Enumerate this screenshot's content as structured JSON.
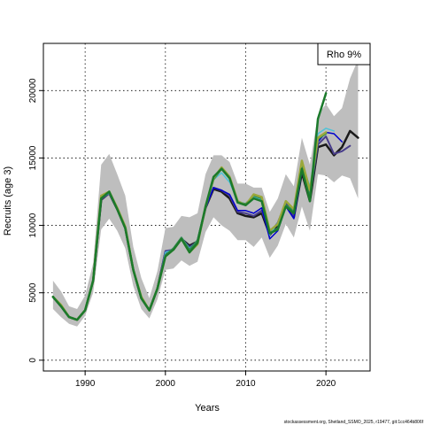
{
  "chart_data": {
    "type": "line",
    "xlabel": "Years",
    "ylabel": "Recruits (age 3)",
    "xlim": [
      1984.8,
      2025.5
    ],
    "ylim": [
      -800,
      23500
    ],
    "x_ticks": [
      1990,
      2000,
      2010,
      2020
    ],
    "y_ticks": [
      0,
      5000,
      10000,
      15000,
      20000
    ],
    "grid": true,
    "legend_position": "top-right",
    "legend_label": "Rho 9%",
    "footer": "stockassessment.org, Shetland_SSMO_2025, r19477, git:1cc464b806f",
    "confidence_band": {
      "color": "#bebebe",
      "x": [
        1986,
        1987,
        1988,
        1989,
        1990,
        1991,
        1992,
        1993,
        1994,
        1995,
        1996,
        1997,
        1998,
        1999,
        2000,
        2001,
        2002,
        2003,
        2004,
        2005,
        2006,
        2007,
        2008,
        2009,
        2010,
        2011,
        2012,
        2013,
        2014,
        2015,
        2016,
        2017,
        2018,
        2019,
        2020,
        2021,
        2022,
        2023,
        2024
      ],
      "upper": [
        5900,
        5100,
        4000,
        3800,
        4800,
        7200,
        14500,
        15300,
        13800,
        12200,
        8400,
        6100,
        4600,
        6600,
        9800,
        9900,
        10700,
        10600,
        10900,
        13800,
        15200,
        15200,
        14700,
        13100,
        13100,
        12800,
        12800,
        11000,
        12000,
        13800,
        12900,
        16500,
        14500,
        18200,
        19000,
        18100,
        18700,
        20900,
        22300
      ],
      "lower": [
        3800,
        3200,
        2700,
        2500,
        3300,
        5000,
        9700,
        10500,
        9600,
        8300,
        5500,
        3800,
        3100,
        4500,
        6700,
        6800,
        7400,
        7000,
        7300,
        9500,
        10600,
        10000,
        9600,
        8900,
        8900,
        8400,
        9100,
        7600,
        8500,
        10100,
        9100,
        11400,
        9600,
        13800,
        13700,
        13200,
        13700,
        13500,
        12000
      ]
    },
    "series": [
      {
        "color": "#1a1a1a",
        "width": 2.5,
        "x": [
          1986,
          1987,
          1988,
          1989,
          1990,
          1991,
          1992,
          1993,
          1994,
          1995,
          1996,
          1997,
          1998,
          1999,
          2000,
          2001,
          2002,
          2003,
          2004,
          2005,
          2006,
          2007,
          2008,
          2009,
          2010,
          2011,
          2012,
          2013,
          2014,
          2015,
          2016,
          2017,
          2018,
          2019,
          2020,
          2021,
          2022,
          2023,
          2024
        ],
        "values": [
          4700,
          4000,
          3200,
          3000,
          3700,
          5900,
          11900,
          12400,
          11200,
          9800,
          6700,
          4600,
          3700,
          5300,
          8000,
          8200,
          9000,
          8500,
          8800,
          11300,
          12700,
          12500,
          12000,
          10900,
          10700,
          10600,
          10900,
          9300,
          10000,
          11600,
          10600,
          13900,
          11800,
          15800,
          16000,
          15200,
          15800,
          17000,
          16500
        ]
      },
      {
        "color": "#483d8b",
        "width": 2,
        "x": [
          1986,
          1987,
          1988,
          1989,
          1990,
          1991,
          1992,
          1993,
          1994,
          1995,
          1996,
          1997,
          1998,
          1999,
          2000,
          2001,
          2002,
          2003,
          2004,
          2005,
          2006,
          2007,
          2008,
          2009,
          2010,
          2011,
          2012,
          2013,
          2014,
          2015,
          2016,
          2017,
          2018,
          2019,
          2020,
          2021,
          2022,
          2023
        ],
        "values": [
          4700,
          4000,
          3200,
          3000,
          3700,
          5900,
          11900,
          12400,
          11200,
          9800,
          6700,
          4600,
          3700,
          5300,
          8100,
          8200,
          9000,
          8400,
          8800,
          11300,
          12800,
          12600,
          12200,
          11000,
          10900,
          10700,
          11100,
          9400,
          10200,
          11700,
          10700,
          14100,
          12100,
          16000,
          16600,
          15300,
          15500,
          15900
        ]
      },
      {
        "color": "#0000cd",
        "width": 1.5,
        "x": [
          1986,
          1987,
          1988,
          1989,
          1990,
          1991,
          1992,
          1993,
          1994,
          1995,
          1996,
          1997,
          1998,
          1999,
          2000,
          2001,
          2002,
          2003,
          2004,
          2005,
          2006,
          2007,
          2008,
          2009,
          2010,
          2011,
          2012,
          2013,
          2014,
          2015,
          2016,
          2017,
          2018,
          2019,
          2020,
          2021,
          2022
        ],
        "values": [
          4700,
          4000,
          3200,
          3000,
          3700,
          5900,
          12000,
          12400,
          11200,
          9800,
          6700,
          4600,
          3700,
          5300,
          8000,
          8200,
          9100,
          8300,
          8800,
          11300,
          12800,
          12600,
          12300,
          11100,
          11100,
          10900,
          11300,
          9000,
          9600,
          11400,
          10500,
          14000,
          12200,
          16200,
          16900,
          16800,
          16200
        ]
      },
      {
        "color": "#4fc3d8",
        "width": 1.5,
        "x": [
          1986,
          1987,
          1988,
          1989,
          1990,
          1991,
          1992,
          1993,
          1994,
          1995,
          1996,
          1997,
          1998,
          1999,
          2000,
          2001,
          2002,
          2003,
          2004,
          2005,
          2006,
          2007,
          2008,
          2009,
          2010,
          2011,
          2012,
          2013,
          2014,
          2015,
          2016,
          2017,
          2018,
          2019,
          2020,
          2021
        ],
        "values": [
          4700,
          4000,
          3200,
          3000,
          3700,
          5900,
          12000,
          12400,
          11200,
          9900,
          6700,
          4600,
          3700,
          5300,
          8000,
          8200,
          9100,
          8300,
          8800,
          11300,
          13400,
          13900,
          13200,
          11800,
          11600,
          12100,
          11900,
          9300,
          10200,
          11500,
          11000,
          14600,
          12900,
          16800,
          17200,
          17000
        ]
      },
      {
        "color": "#2e8b57",
        "width": 2,
        "x": [
          1986,
          1987,
          1988,
          1989,
          1990,
          1991,
          1992,
          1993,
          1994,
          1995,
          1996,
          1997,
          1998,
          1999,
          2000,
          2001,
          2002,
          2003,
          2004,
          2005,
          2006,
          2007,
          2008,
          2009,
          2010,
          2011,
          2012,
          2013,
          2014,
          2015,
          2016,
          2017,
          2018,
          2019,
          2020
        ],
        "values": [
          4700,
          4000,
          3200,
          3000,
          3700,
          6000,
          12100,
          12500,
          11300,
          9900,
          6700,
          4600,
          3700,
          5300,
          7800,
          8300,
          9100,
          8200,
          8900,
          11400,
          13400,
          14200,
          13500,
          11700,
          11600,
          12200,
          12000,
          9400,
          9800,
          11500,
          11100,
          14500,
          12100,
          16400,
          16800
        ]
      },
      {
        "color": "#9aa83a",
        "width": 2.5,
        "x": [
          1986,
          1987,
          1988,
          1989,
          1990,
          1991,
          1992,
          1993,
          1994,
          1995,
          1996,
          1997,
          1998,
          1999,
          2000,
          2001,
          2002,
          2003,
          2004,
          2005,
          2006,
          2007,
          2008,
          2009,
          2010,
          2011,
          2012,
          2013,
          2014,
          2015,
          2016,
          2017,
          2018,
          2019,
          2020
        ],
        "values": [
          4700,
          4100,
          3200,
          3000,
          3700,
          5900,
          12200,
          12500,
          11300,
          9900,
          6700,
          4700,
          3700,
          5300,
          7700,
          8200,
          9000,
          8000,
          8600,
          11400,
          13500,
          14300,
          13600,
          11800,
          11500,
          12300,
          12100,
          9600,
          10100,
          11800,
          11200,
          14800,
          12600,
          16500,
          16900
        ]
      },
      {
        "color": "#1b7a2b",
        "width": 2.5,
        "x": [
          1986,
          1987,
          1988,
          1989,
          1990,
          1991,
          1992,
          1993,
          1994,
          1995,
          1996,
          1997,
          1998,
          1999,
          2000,
          2001,
          2002,
          2003,
          2004,
          2005,
          2006,
          2007,
          2008,
          2009,
          2010,
          2011,
          2012,
          2013,
          2014,
          2015,
          2016,
          2017,
          2018,
          2019,
          2020
        ],
        "values": [
          4700,
          4000,
          3200,
          3000,
          3700,
          5900,
          12000,
          12500,
          11200,
          9800,
          6700,
          4600,
          3700,
          5300,
          7700,
          8200,
          9000,
          8000,
          8700,
          11400,
          13600,
          14200,
          13500,
          11700,
          11500,
          12000,
          11800,
          9400,
          9700,
          11400,
          10900,
          14200,
          11800,
          17900,
          19800
        ]
      }
    ]
  }
}
